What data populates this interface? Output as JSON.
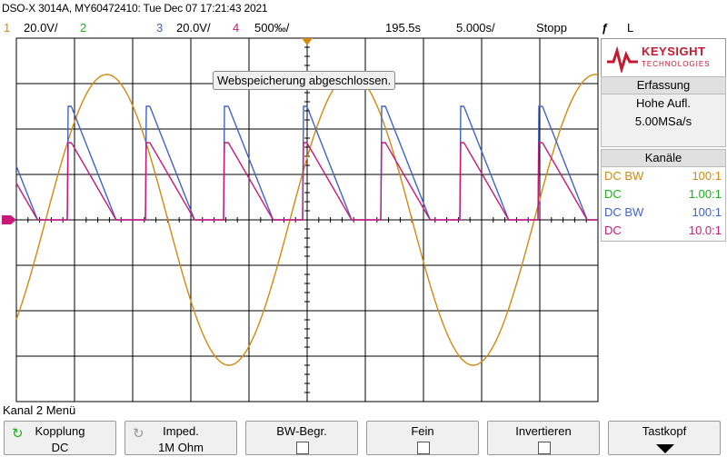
{
  "header": {
    "title_line": "DSO-X 3014A, MY60472410: Tue Dec 07 17:21:43 2021"
  },
  "statusbar": {
    "ch1_num": "1",
    "ch1_scale": "20.0V/",
    "ch2_num": "2",
    "ch3_num": "3",
    "ch3_scale": "20.0V/",
    "ch4_num": "4",
    "ch4_scale": "500‰/",
    "delay": "195.5s",
    "timebase": "5.000s/",
    "run_state": "Stopp",
    "trigger_icon": "edge-trigger-icon",
    "trigger_level": "L"
  },
  "notice": "Webspeicherung abgeschlossen.",
  "brand": {
    "name": "KEYSIGHT",
    "sub": "TECHNOLOGIES"
  },
  "acquisition": {
    "header": "Erfassung",
    "mode": "Hohe Aufl.",
    "rate": "5.00MSa/s"
  },
  "channels": {
    "header": "Kanäle",
    "rows": [
      {
        "left": "DC BW",
        "right": "100:1",
        "color": "#d08a10"
      },
      {
        "left": "DC",
        "right": "1.00:1",
        "color": "#19b019"
      },
      {
        "left": "DC BW",
        "right": "100:1",
        "color": "#3f63c8"
      },
      {
        "left": "DC",
        "right": "10.0:1",
        "color": "#c8187a"
      }
    ]
  },
  "menu_title": "Kanal 2 Menü",
  "softkeys": {
    "k1": {
      "title": "Kopplung",
      "value": "DC"
    },
    "k2": {
      "title": "Imped.",
      "value": "1M Ohm"
    },
    "k3": {
      "title": "BW-Begr."
    },
    "k4": {
      "title": "Fein"
    },
    "k5": {
      "title": "Invertieren"
    },
    "k6": {
      "title": "Tastkopf"
    }
  },
  "colors": {
    "ch1": "#d08a10",
    "ch2": "#19b019",
    "ch3": "#3f63c8",
    "ch4": "#c8187a",
    "graticule": "#000000",
    "grid_bg": "#ffffff"
  },
  "waveforms": {
    "time_divisions": 10,
    "volt_divisions": 8,
    "ch1_sine_period_div": 4.2,
    "ch1_sine_amplitude_div": 3.2,
    "ch3_pulse_period_div": 1.35,
    "ch4_pulse_period_div": 1.35
  }
}
